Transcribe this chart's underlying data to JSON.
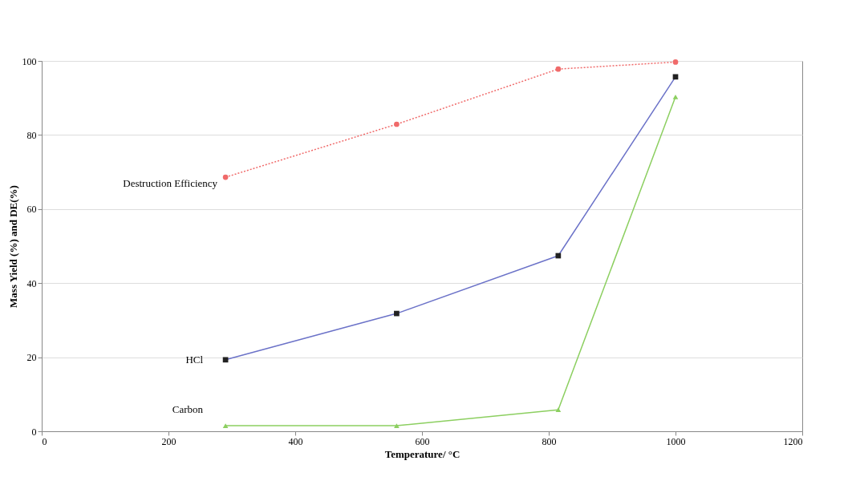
{
  "chart_data": {
    "type": "line",
    "xlabel": "Temperature/ °C",
    "ylabel": "Mass Yield (%) and DE(%)",
    "xlim": [
      0,
      1200
    ],
    "xticks": [
      0,
      200,
      400,
      600,
      800,
      1000,
      1200
    ],
    "ylim": [
      0,
      100
    ],
    "yticks": [
      0,
      20,
      40,
      60,
      80,
      100
    ],
    "grid": "y",
    "x": [
      290,
      560,
      815,
      1000
    ],
    "series": [
      {
        "name": "Destruction Efficiency",
        "color": "#f06a6a",
        "values": [
          68.6,
          82.9,
          97.8,
          99.7
        ],
        "marker": "circle",
        "line_style": "dotted"
      },
      {
        "name": "HCl",
        "color": "#6b72c8",
        "values": [
          19.3,
          31.8,
          47.4,
          95.7
        ],
        "marker": "square",
        "line_style": "solid"
      },
      {
        "name": "Carbon",
        "color": "#8ccf60",
        "values": [
          1.5,
          1.5,
          5.8,
          90.3
        ],
        "marker": "triangle",
        "line_style": "solid"
      }
    ]
  }
}
